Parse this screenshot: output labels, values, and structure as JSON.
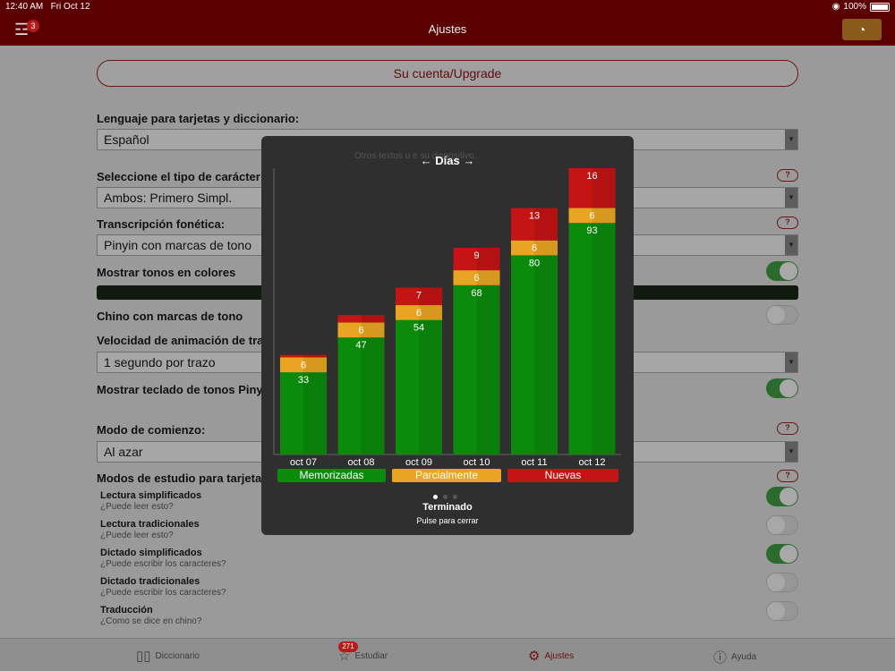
{
  "status_bar": {
    "time": "12:40 AM",
    "date": "Fri Oct 12",
    "battery": "100%"
  },
  "nav": {
    "title": "Ajustes",
    "filter_badge": "3"
  },
  "settings": {
    "account_button": "Su cuenta/Upgrade",
    "language_label": "Lenguaje para tarjetas y diccionario:",
    "language_value": "Español",
    "char_type_label": "Seleccione el tipo de carácter:",
    "char_type_value": "Ambos: Primero Simpl.",
    "transcription_label": "Transcripción fonética:",
    "transcription_value": "Pinyin con marcas de tono",
    "color_tones_label": "Mostrar tonos en colores",
    "chinese_tone_marks_label": "Chino con marcas de tono",
    "stroke_speed_label": "Velocidad de animación de trazos",
    "stroke_speed_value": "1 segundo por trazo",
    "pinyin_keyboard_label": "Mostrar teclado de tonos Pinyin",
    "start_mode_label": "Modo de comienzo:",
    "start_mode_value": "Al azar",
    "study_modes_label": "Modos de estudio para tarjetas nue",
    "modes": [
      {
        "title": "Lectura simplificados",
        "subtitle": "¿Puede leer esto?",
        "on": true
      },
      {
        "title": "Lectura tradicionales",
        "subtitle": "¿Puede leer esto?",
        "on": false
      },
      {
        "title": "Dictado simplificados",
        "subtitle": "¿Puede escribir los caracteres?",
        "on": true
      },
      {
        "title": "Dictado tradicionales",
        "subtitle": "¿Puede escribir los caracteres?",
        "on": false
      },
      {
        "title": "Traducción",
        "subtitle": "¿Como se dice en chino?",
        "on": false
      }
    ],
    "help_label": "?"
  },
  "modal": {
    "title": "← Días →",
    "ghost_text": "Otros textos u                    e su dispositivo.",
    "legend": {
      "memorized": "Memorizadas",
      "partial": "Parcialmente",
      "new": "Nuevas"
    },
    "done": "Terminado",
    "tap_to_close": "Pulse para cerrar"
  },
  "chart_data": {
    "type": "bar",
    "stacked": true,
    "categories": [
      "oct 07",
      "oct 08",
      "oct 09",
      "oct 10",
      "oct 11",
      "oct 12"
    ],
    "series": [
      {
        "name": "Memorizadas",
        "color": "#0c8a0c",
        "values": [
          33,
          47,
          54,
          68,
          80,
          93
        ]
      },
      {
        "name": "Parcialmente",
        "color": "#e9a521",
        "values": [
          6,
          6,
          6,
          6,
          6,
          6
        ]
      },
      {
        "name": "Nuevas",
        "color": "#c41414",
        "values": [
          1,
          3,
          7,
          9,
          13,
          16
        ]
      }
    ],
    "data_labels": [
      [
        "33",
        "6",
        ""
      ],
      [
        "47",
        "6",
        ""
      ],
      [
        "54",
        "6",
        "7"
      ],
      [
        "68",
        "6",
        "9"
      ],
      [
        "80",
        "6",
        "13"
      ],
      [
        "93",
        "6",
        "16"
      ]
    ],
    "ylim": [
      0,
      115
    ]
  },
  "tabs": [
    {
      "label": "Diccionario",
      "icon": "book-icon"
    },
    {
      "label": "Estudiar",
      "icon": "star-icon",
      "badge": "271"
    },
    {
      "label": "Ajustes",
      "icon": "gear-icon",
      "active": true
    },
    {
      "label": "Ayuda",
      "icon": "info-icon"
    }
  ]
}
